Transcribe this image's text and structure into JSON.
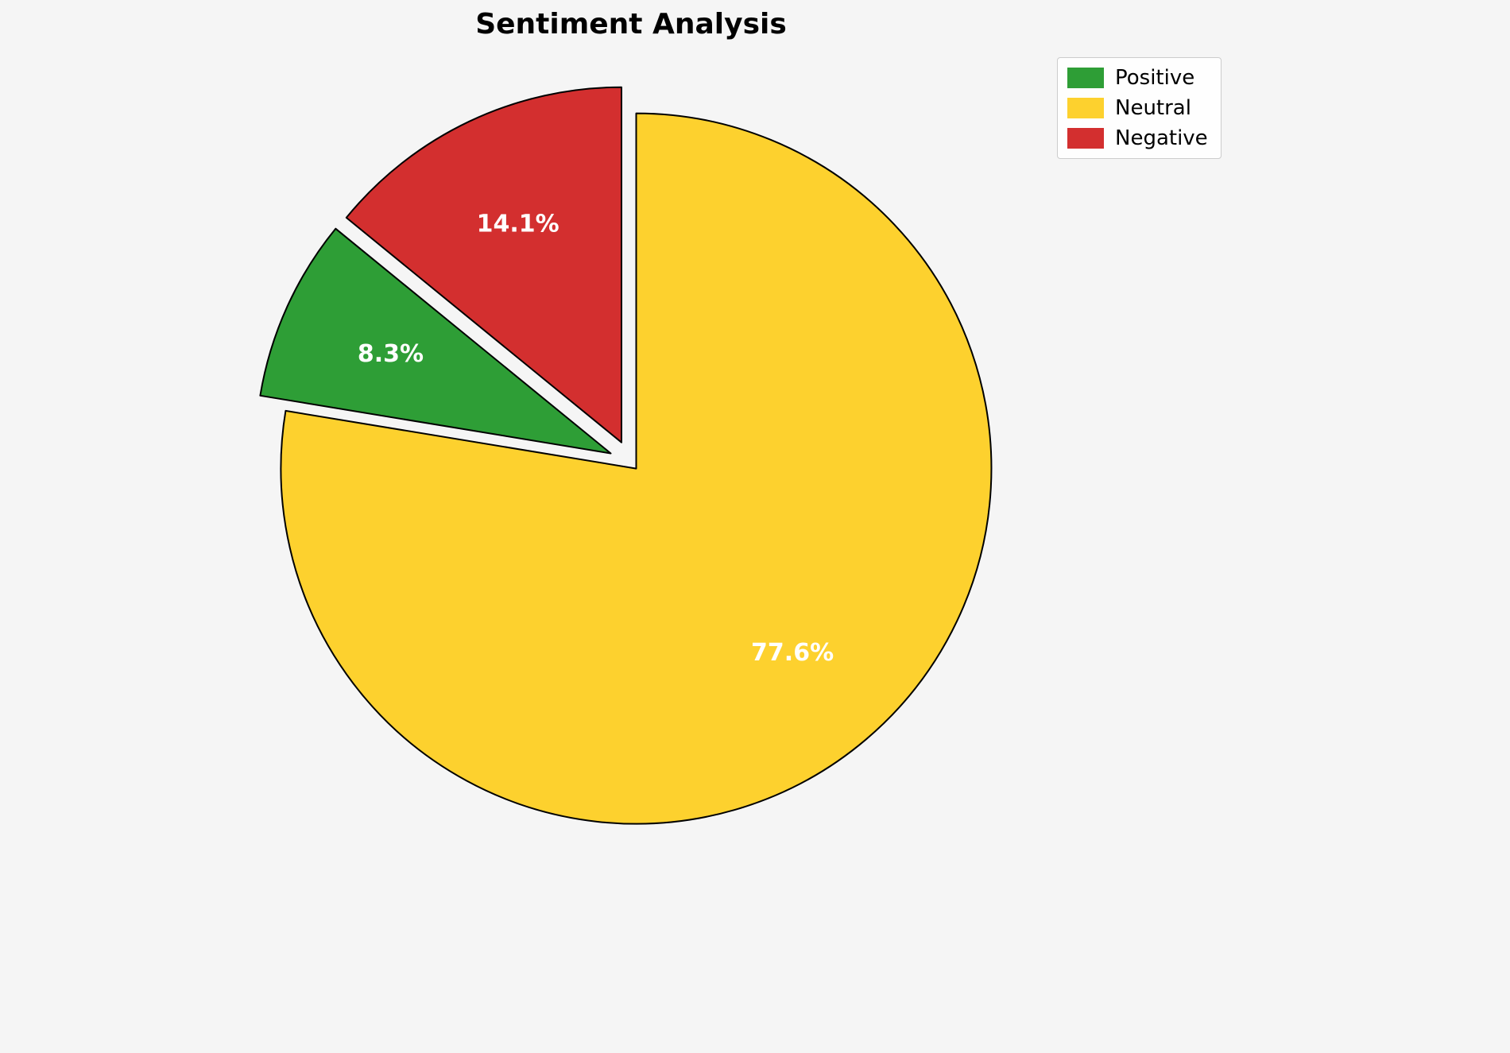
{
  "title": "Sentiment Analysis",
  "chart_data": {
    "type": "pie",
    "title": "Sentiment Analysis",
    "slices": [
      {
        "label": "Positive",
        "value": 8.3,
        "color": "#2e9e36",
        "explode": 28
      },
      {
        "label": "Neutral",
        "value": 77.6,
        "color": "#fdd12e",
        "explode": 10
      },
      {
        "label": "Negative",
        "value": 14.1,
        "color": "#d32f2f",
        "explode": 28
      }
    ],
    "labels": [
      "8.3%",
      "77.6%",
      "14.1%"
    ],
    "draw_order": [
      1,
      0,
      2
    ],
    "start_angle": 90,
    "direction": "clockwise",
    "edge_color": "#000000",
    "label_color": "#ffffff",
    "legend_position": "upper right",
    "background": "#f5f5f5"
  },
  "legend": {
    "items": [
      {
        "label": "Positive"
      },
      {
        "label": "Neutral"
      },
      {
        "label": "Negative"
      }
    ]
  }
}
